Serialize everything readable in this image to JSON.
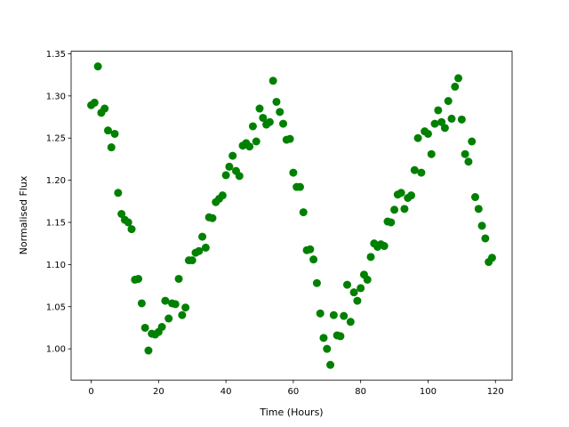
{
  "chart_data": {
    "type": "scatter",
    "x_label": "Time (Hours)",
    "y_label": "Normalised Flux",
    "color": "#008000",
    "xlim": [
      -5.95,
      124.95
    ],
    "ylim": [
      0.963,
      1.353
    ],
    "xticks": [
      0,
      20,
      40,
      60,
      80,
      100,
      120
    ],
    "yticks": [
      {
        "value": 1,
        "label": "1.00"
      },
      1.05,
      {
        "value": 1.1,
        "label": "1.10"
      },
      1.15,
      {
        "value": 1.2,
        "label": "1.20"
      },
      1.25,
      {
        "value": 1.3,
        "label": "1.30"
      },
      1.35
    ],
    "x": [
      0,
      1,
      2,
      3,
      4,
      5,
      6,
      7,
      8,
      9,
      10,
      11,
      12,
      13,
      14,
      15,
      16,
      17,
      18,
      19,
      20,
      21,
      22,
      23,
      24,
      25,
      26,
      27,
      28,
      29,
      30,
      31,
      32,
      33,
      34,
      35,
      36,
      37,
      38,
      39,
      40,
      41,
      42,
      43,
      44,
      45,
      46,
      47,
      48,
      49,
      50,
      51,
      52,
      53,
      54,
      55,
      56,
      57,
      58,
      59,
      60,
      61,
      62,
      63,
      64,
      65,
      66,
      67,
      68,
      69,
      70,
      71,
      72,
      73,
      74,
      75,
      76,
      77,
      78,
      79,
      80,
      81,
      82,
      83,
      84,
      85,
      86,
      87,
      88,
      89,
      90,
      91,
      92,
      93,
      94,
      95,
      96,
      97,
      98,
      99,
      100,
      101,
      102,
      103,
      104,
      105,
      106,
      107,
      108,
      109,
      110,
      111,
      112,
      113,
      114,
      115,
      116,
      117,
      118,
      119
    ],
    "values": [
      1.289,
      1.292,
      1.335,
      1.28,
      1.285,
      1.259,
      1.239,
      1.255,
      1.185,
      1.16,
      1.153,
      1.15,
      1.142,
      1.082,
      1.083,
      1.054,
      1.025,
      0.998,
      1.018,
      1.017,
      1.02,
      1.026,
      1.057,
      1.036,
      1.054,
      1.053,
      1.083,
      1.04,
      1.049,
      1.105,
      1.105,
      1.114,
      1.116,
      1.133,
      1.12,
      1.156,
      1.155,
      1.174,
      1.178,
      1.182,
      1.206,
      1.216,
      1.229,
      1.211,
      1.205,
      1.241,
      1.244,
      1.24,
      1.264,
      1.246,
      1.285,
      1.274,
      1.266,
      1.269,
      1.318,
      1.293,
      1.281,
      1.267,
      1.248,
      1.249,
      1.209,
      1.192,
      1.192,
      1.162,
      1.117,
      1.118,
      1.106,
      1.078,
      1.042,
      1.013,
      1.0,
      0.981,
      1.04,
      1.016,
      1.015,
      1.039,
      1.076,
      1.032,
      1.067,
      1.057,
      1.072,
      1.088,
      1.082,
      1.109,
      1.125,
      1.121,
      1.124,
      1.122,
      1.151,
      1.15,
      1.165,
      1.183,
      1.185,
      1.166,
      1.179,
      1.182,
      1.212,
      1.25,
      1.209,
      1.258,
      1.255,
      1.231,
      1.267,
      1.283,
      1.269,
      1.262,
      1.294,
      1.273,
      1.311,
      1.321,
      1.272,
      1.231,
      1.222,
      1.246,
      1.18,
      1.166,
      1.146,
      1.131,
      1.103,
      1.108
    ]
  }
}
